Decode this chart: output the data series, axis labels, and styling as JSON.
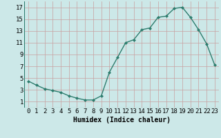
{
  "x": [
    0,
    1,
    2,
    3,
    4,
    5,
    6,
    7,
    8,
    9,
    10,
    11,
    12,
    13,
    14,
    15,
    16,
    17,
    18,
    19,
    20,
    21,
    22,
    23
  ],
  "y": [
    4.5,
    3.8,
    3.2,
    2.9,
    2.6,
    2.0,
    1.6,
    1.3,
    1.3,
    2.0,
    6.0,
    8.5,
    11.0,
    11.5,
    13.2,
    13.5,
    15.3,
    15.5,
    16.8,
    17.0,
    15.3,
    13.2,
    10.8,
    7.2
  ],
  "xlabel": "Humidex (Indice chaleur)",
  "xlim": [
    -0.5,
    23.5
  ],
  "ylim": [
    0,
    18
  ],
  "yticks": [
    1,
    3,
    5,
    7,
    9,
    11,
    13,
    15,
    17
  ],
  "xticks": [
    0,
    1,
    2,
    3,
    4,
    5,
    6,
    7,
    8,
    9,
    10,
    11,
    12,
    13,
    14,
    15,
    16,
    17,
    18,
    19,
    20,
    21,
    22,
    23
  ],
  "line_color": "#2e7d6e",
  "marker": "D",
  "marker_size": 2.0,
  "bg_color": "#cce8e8",
  "grid_color": "#b0d0d0",
  "xlabel_fontsize": 7,
  "tick_fontsize": 6.5
}
